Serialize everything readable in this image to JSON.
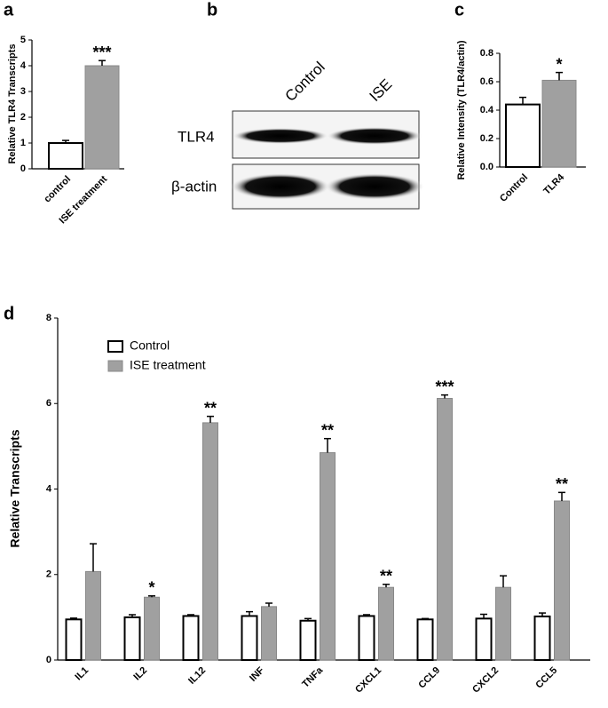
{
  "chart_data": [
    {
      "type": "bar",
      "panel": "a",
      "ylabel": "Relative TLR4 Transcripts",
      "categories": [
        "control",
        "ISE treatment"
      ],
      "values": [
        1.0,
        4.0
      ],
      "errors": [
        0.1,
        0.2
      ],
      "colors": [
        "#ffffff",
        "#a0a0a0"
      ],
      "significance": [
        null,
        "***"
      ],
      "ylim": [
        0,
        5
      ],
      "yticks": [
        0,
        1,
        2,
        3,
        4,
        5
      ]
    },
    {
      "type": "bar",
      "panel": "c",
      "ylabel": "Relative Intensity (TLR4/actin)",
      "categories": [
        "Control",
        "TLR4"
      ],
      "values": [
        0.44,
        0.61
      ],
      "errors": [
        0.05,
        0.055
      ],
      "colors": [
        "#ffffff",
        "#a0a0a0"
      ],
      "significance": [
        null,
        "*"
      ],
      "ylim": [
        0,
        0.8
      ],
      "yticks": [
        {
          "value": 0,
          "label": "0.0"
        },
        0.2,
        0.4,
        0.6,
        0.8
      ]
    },
    {
      "type": "bar",
      "panel": "d",
      "ylabel": "Relative Transcripts",
      "categories": [
        "IL1",
        "IL2",
        "IL12",
        "INF",
        "TNFa",
        "CXCL1",
        "CCL9",
        "CXCL2",
        "CCL5"
      ],
      "series": [
        {
          "name": "Control",
          "color": "#ffffff",
          "values": [
            0.95,
            1.0,
            1.03,
            1.03,
            0.92,
            1.03,
            0.95,
            0.97,
            1.02
          ],
          "errors": [
            0.03,
            0.06,
            0.03,
            0.1,
            0.05,
            0.03,
            0.02,
            0.1,
            0.08
          ]
        },
        {
          "name": "ISE treatment",
          "color": "#a0a0a0",
          "values": [
            2.07,
            1.47,
            5.55,
            1.25,
            4.85,
            1.7,
            6.12,
            1.7,
            3.72
          ],
          "errors": [
            0.65,
            0.03,
            0.15,
            0.08,
            0.33,
            0.07,
            0.08,
            0.27,
            0.2
          ],
          "significance": [
            null,
            "*",
            "**",
            null,
            "**",
            "**",
            "***",
            null,
            "**"
          ]
        }
      ],
      "ylim": [
        0,
        8
      ],
      "yticks": [
        0,
        2,
        4,
        6,
        8
      ]
    }
  ],
  "blot": {
    "panel": "b",
    "lanes": [
      "Control",
      "ISE"
    ],
    "rows": [
      "TLR4",
      "β-actin"
    ]
  }
}
